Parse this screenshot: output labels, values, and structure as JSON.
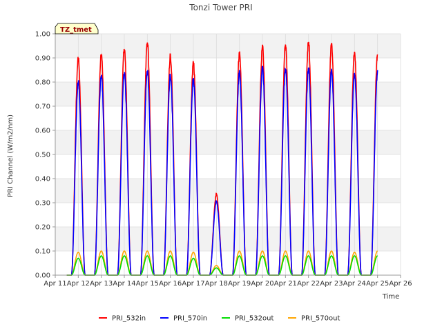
{
  "chart_data": {
    "type": "line",
    "title": "Tonzi Tower PRI",
    "xlabel": "Time",
    "ylabel": "PRI Channel (W/m2/nm)",
    "tag": "TZ_tmet",
    "x_tick_labels": [
      "Apr 11",
      "Apr 12",
      "Apr 13",
      "Apr 14",
      "Apr 15",
      "Apr 16",
      "Apr 17",
      "Apr 18",
      "Apr 19",
      "Apr 20",
      "Apr 21",
      "Apr 22",
      "Apr 23",
      "Apr 24",
      "Apr 25",
      "Apr 26"
    ],
    "y_tick_labels": [
      "0.00",
      "0.10",
      "0.20",
      "0.30",
      "0.40",
      "0.50",
      "0.60",
      "0.70",
      "0.80",
      "0.90",
      "1.00"
    ],
    "xlim": [
      11,
      26
    ],
    "ylim": [
      0,
      1.0
    ],
    "grid": true,
    "legend_position": "bottom",
    "day_starts": [
      11.5,
      12,
      13,
      14,
      15,
      16,
      17,
      18,
      19,
      20,
      21,
      22,
      23,
      24,
      25,
      26
    ],
    "series": [
      {
        "name": "PRI_532in",
        "color": "#ff0000",
        "daily_peaks": [
          0.91,
          0.93,
          0.95,
          0.98,
          0.92,
          0.89,
          0.34,
          0.93,
          0.96,
          0.97,
          0.98,
          0.97,
          0.94,
          0.93
        ]
      },
      {
        "name": "PRI_570in",
        "color": "#0000ff",
        "daily_peaks": [
          0.81,
          0.84,
          0.85,
          0.86,
          0.84,
          0.82,
          0.31,
          0.85,
          0.87,
          0.87,
          0.87,
          0.86,
          0.85,
          0.85
        ]
      },
      {
        "name": "PRI_532out",
        "color": "#00dd00",
        "daily_peaks": [
          0.07,
          0.08,
          0.08,
          0.08,
          0.08,
          0.07,
          0.03,
          0.08,
          0.08,
          0.08,
          0.08,
          0.08,
          0.08,
          0.08
        ]
      },
      {
        "name": "PRI_570out",
        "color": "#ffa500",
        "daily_peaks": [
          0.095,
          0.1,
          0.1,
          0.1,
          0.1,
          0.095,
          0.04,
          0.1,
          0.1,
          0.1,
          0.1,
          0.1,
          0.095,
          0.1
        ]
      }
    ],
    "peak_days": [
      12,
      13,
      14,
      15,
      16,
      17,
      18,
      19,
      20,
      21,
      22,
      23,
      24,
      25
    ]
  }
}
